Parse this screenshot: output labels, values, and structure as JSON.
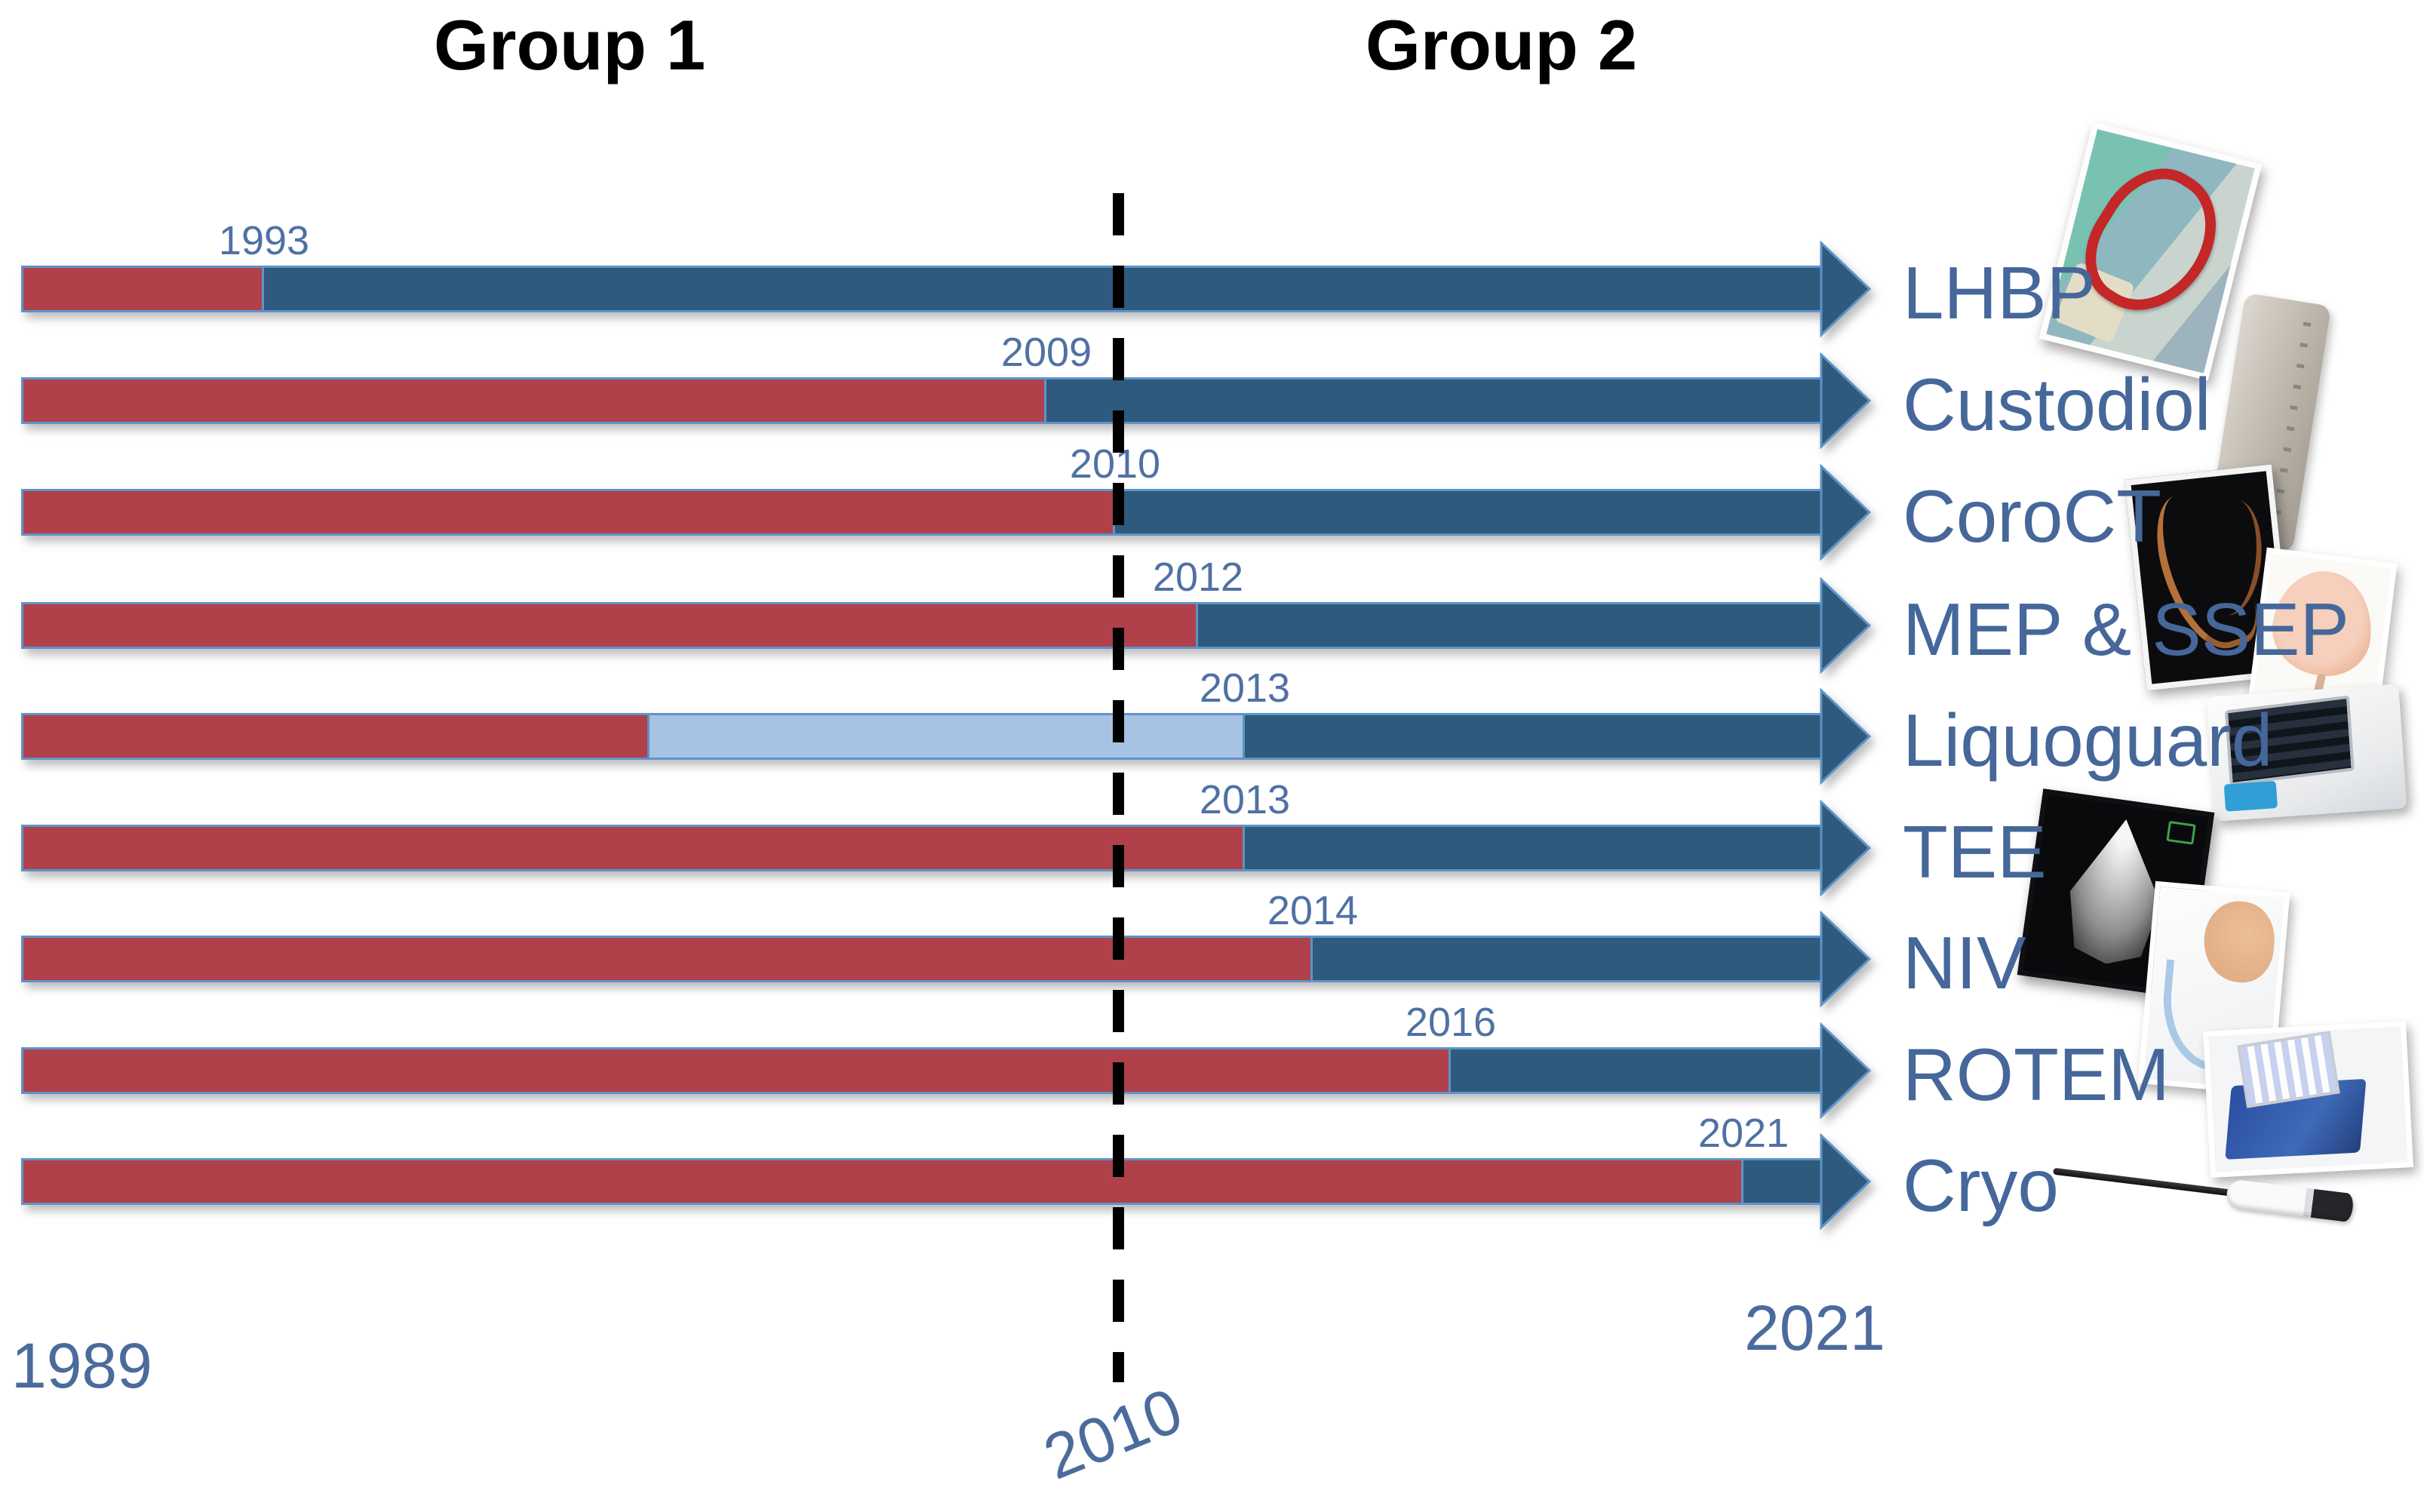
{
  "titles": {
    "group1": "Group 1",
    "group2": "Group 2"
  },
  "axis_labels": {
    "start": "1989",
    "divider": "2010",
    "end": "2021"
  },
  "colors": {
    "pre_red": "#b04049",
    "post_blue": "#2e5a7d",
    "partial_blue": "#a6c3e3",
    "bar_border": "#5f93c8",
    "year_label": "#4f71a4",
    "row_label": "#45679a",
    "axis_label": "#4a6b9c",
    "divider_line": "#000000",
    "title": "#000000"
  },
  "chart_data": {
    "type": "timeline",
    "title": "",
    "x_range": [
      1989,
      2021
    ],
    "divider_year": 2010,
    "groups": [
      "Group 1",
      "Group 2"
    ],
    "legend_position": "none",
    "rows": [
      {
        "label": "LHBP",
        "year_label": "1993",
        "introduced": 1993,
        "image": "lhbp-machine-photo",
        "phases": [
          {
            "state": "before",
            "start": 1989,
            "end": 1993
          },
          {
            "state": "after",
            "start": 1993,
            "end": 2021
          }
        ]
      },
      {
        "label": "Custodiol",
        "year_label": "2009",
        "introduced": 2009,
        "image": "custodiol-bag-photo",
        "phases": [
          {
            "state": "before",
            "start": 1989,
            "end": 2009
          },
          {
            "state": "after",
            "start": 2009,
            "end": 2021
          }
        ]
      },
      {
        "label": "CoroCT",
        "year_label": "2010",
        "introduced": 2010,
        "image": "coroct-angiogram-photo",
        "phases": [
          {
            "state": "before",
            "start": 1989,
            "end": 2010
          },
          {
            "state": "after",
            "start": 2010,
            "end": 2021
          }
        ]
      },
      {
        "label": "MEP & SSEP",
        "year_label": "2012",
        "introduced": 2012,
        "image": "mep-ssep-brain-photo",
        "phases": [
          {
            "state": "before",
            "start": 1989,
            "end": 2012
          },
          {
            "state": "after",
            "start": 2012,
            "end": 2021
          }
        ]
      },
      {
        "label": "Liquoguard",
        "year_label": "2013",
        "introduced": 2013,
        "image": "liquoguard-device-photo",
        "phases": [
          {
            "state": "before",
            "start": 1989,
            "end": 2001
          },
          {
            "state": "partial",
            "start": 2001,
            "end": 2013
          },
          {
            "state": "after",
            "start": 2013,
            "end": 2021
          }
        ]
      },
      {
        "label": "TEE",
        "year_label": "2013",
        "introduced": 2013,
        "image": "tee-echo-photo",
        "phases": [
          {
            "state": "before",
            "start": 1989,
            "end": 2013
          },
          {
            "state": "after",
            "start": 2013,
            "end": 2021
          }
        ]
      },
      {
        "label": "NIV",
        "year_label": "2014",
        "introduced": 2014,
        "image": "niv-mask-photo",
        "phases": [
          {
            "state": "before",
            "start": 1989,
            "end": 2014
          },
          {
            "state": "after",
            "start": 2014,
            "end": 2021
          }
        ]
      },
      {
        "label": "ROTEM",
        "year_label": "2016",
        "introduced": 2016,
        "image": "rotem-device-photo",
        "phases": [
          {
            "state": "before",
            "start": 1989,
            "end": 2016
          },
          {
            "state": "after",
            "start": 2016,
            "end": 2021
          }
        ]
      },
      {
        "label": "Cryo",
        "year_label": "2021",
        "introduced": 2021,
        "image": "cryo-probe-photo",
        "phases": [
          {
            "state": "before",
            "start": 1989,
            "end": 2021
          },
          {
            "state": "after",
            "start": 2021,
            "end": 2021
          }
        ]
      }
    ]
  }
}
